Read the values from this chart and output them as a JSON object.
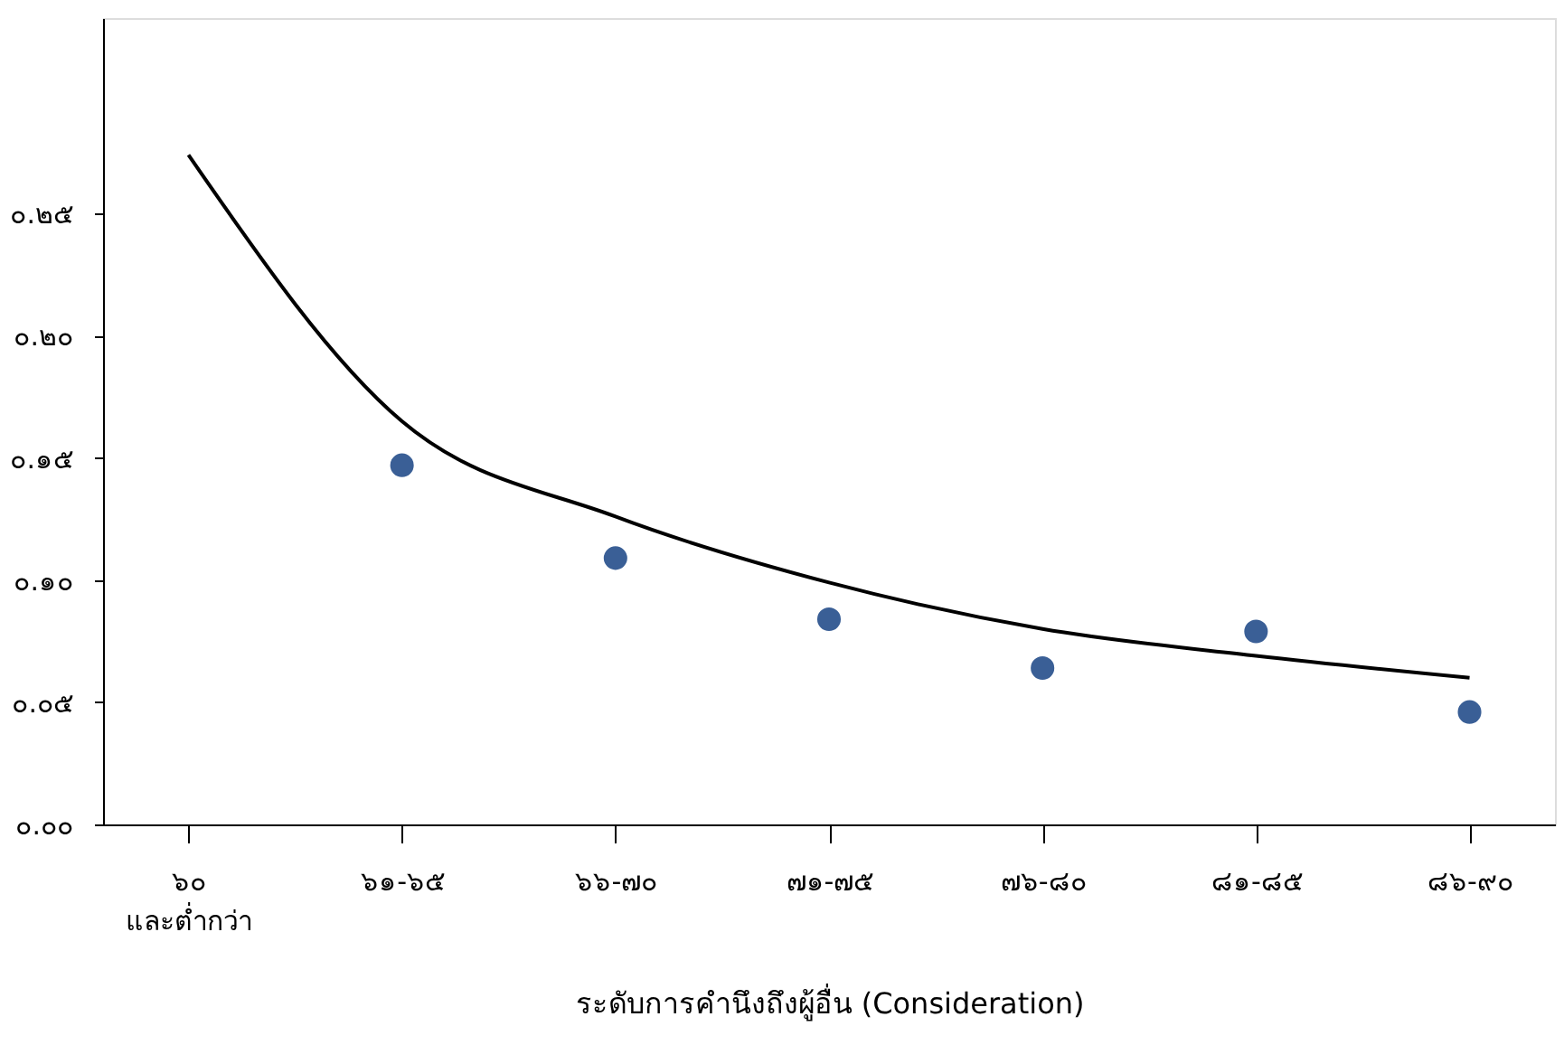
{
  "chart_data": {
    "type": "scatter",
    "xlabel": "ระดับการคำนึงถึงผู้อื่น (Consideration)",
    "categories": [
      "๖๐\nและต่ำกว่า",
      "๖๑-๖๕",
      "๖๖-๗๐",
      "๗๑-๗๕",
      "๗๖-๘๐",
      "๘๑-๘๕",
      "๘๖-๙๐"
    ],
    "series": [
      {
        "color": "#3a5f96",
        "values": [
          null,
          0.147,
          0.109,
          0.084,
          0.064,
          0.079,
          0.046
        ]
      },
      {
        "type": "line",
        "marker": "none",
        "color": "#000000",
        "values": [
          0.274,
          0.165,
          0.126,
          0.099,
          0.08,
          0.069,
          0.06
        ]
      }
    ],
    "ylim": [
      0,
      0.33
    ],
    "yticks": [
      {
        "value": 0,
        "label": "๐.๐๐"
      },
      {
        "value": 0.05,
        "label": "๐.๐๕"
      },
      {
        "value": 0.1,
        "label": "๐.๑๐"
      },
      {
        "value": 0.15,
        "label": "๐.๑๕"
      },
      {
        "value": 0.2,
        "label": "๐.๒๐"
      },
      {
        "value": 0.25,
        "label": "๐.๒๕"
      }
    ],
    "marker": "circle",
    "grid": false
  }
}
